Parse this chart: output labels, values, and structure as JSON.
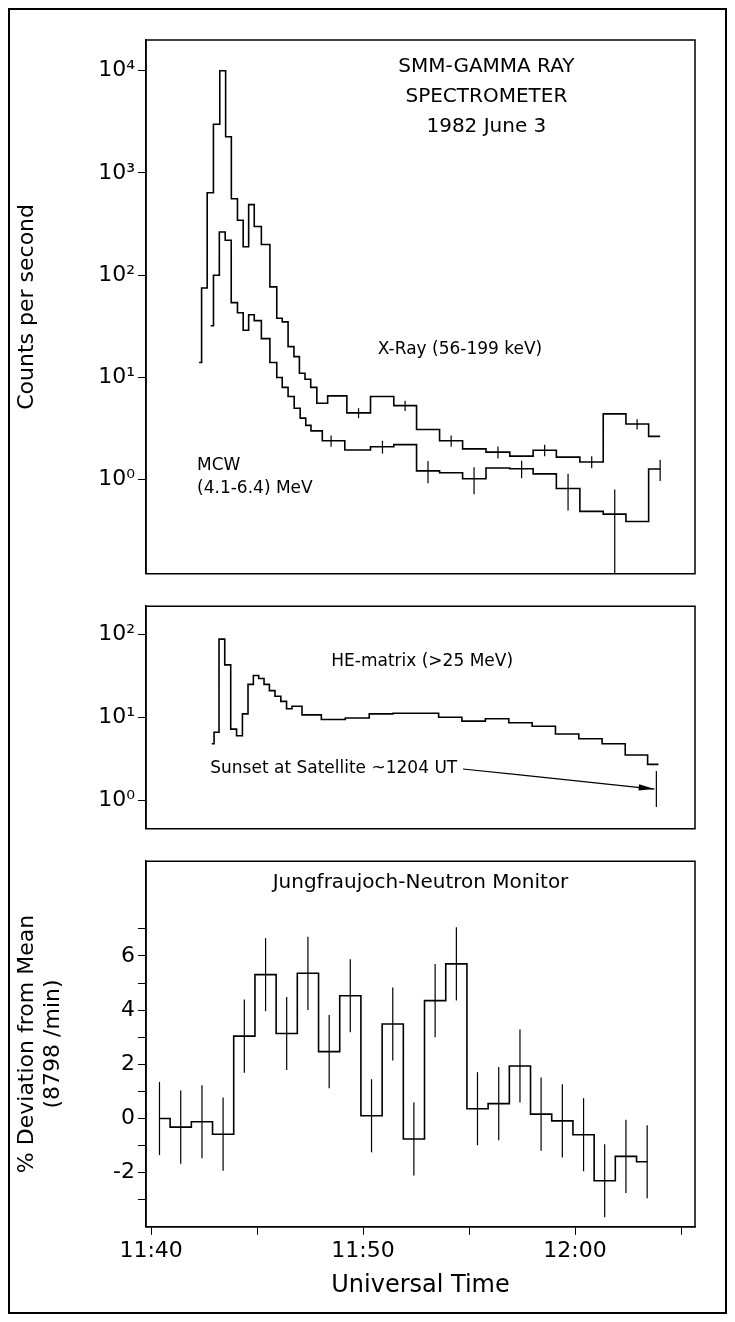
{
  "chart_data": [
    {
      "type": "step",
      "title": "SMM-GAMMA RAY\nSPECTROMETER\n1982 June 3",
      "ylabel": "Counts per second",
      "log": "y",
      "tick_labels": "y",
      "xlim": [
        11.6627,
        12.0943
      ],
      "ylim": [
        0.12,
        20000
      ],
      "yticks": [
        {
          "value": 1,
          "label": "10⁰"
        },
        {
          "value": 10,
          "label": "10¹"
        },
        {
          "value": 100,
          "label": "10²"
        },
        {
          "value": 1000,
          "label": "10³"
        },
        {
          "value": 10000,
          "label": "10⁴"
        }
      ],
      "series": [
        {
          "name": "X-Ray (56-199 keV)",
          "color": "#000000",
          "x": [
            11.7044,
            11.7084,
            11.7132,
            11.7182,
            11.7232,
            11.7274,
            11.7322,
            11.737,
            11.7412,
            11.7456,
            11.75,
            11.7568,
            11.7634,
            11.7676,
            11.772,
            11.7768,
            11.7812,
            11.7854,
            11.79,
            11.7944,
            11.7996,
            11.8114,
            11.8298,
            11.8486,
            11.8664,
            11.8844,
            11.9026,
            11.9206,
            11.9394,
            11.958,
            11.9761,
            11.9945,
            12.0131,
            12.0312,
            12.0488,
            12.0669
          ],
          "values": [
            14,
            75,
            640,
            3000,
            10000,
            2260,
            560,
            345,
            190,
            490,
            300,
            200,
            77,
            38,
            35,
            20,
            16,
            11,
            9.6,
            8,
            5.6,
            6.6,
            4.5,
            6.5,
            5.3,
            3.1,
            2.4,
            2.0,
            1.86,
            1.7,
            1.94,
            1.66,
            1.49,
            4.4,
            3.5,
            2.65
          ],
          "errors": [
            null,
            null,
            null,
            null,
            null,
            null,
            null,
            null,
            null,
            null,
            null,
            null,
            null,
            null,
            null,
            null,
            null,
            null,
            null,
            null,
            null,
            null,
            0.5,
            null,
            0.6,
            null,
            0.3,
            null,
            0.25,
            null,
            0.25,
            null,
            0.2,
            null,
            0.4,
            null
          ]
        },
        {
          "name": "MCW\n(4.1-6.4) MeV",
          "color": "#000000",
          "x": [
            11.7135,
            11.718,
            11.7227,
            11.7272,
            11.7322,
            11.737,
            11.7412,
            11.7456,
            11.75,
            11.7568,
            11.7634,
            11.7676,
            11.772,
            11.7768,
            11.7816,
            11.7862,
            11.7904,
            11.7944,
            11.8082,
            11.8298,
            11.8486,
            11.8664,
            11.8844,
            11.9026,
            11.9206,
            11.9394,
            11.958,
            11.9761,
            11.9945,
            12.0131,
            12.0312,
            12.0488,
            12.0669
          ],
          "values": [
            32,
            100,
            265,
            220,
            54,
            43,
            29,
            41,
            36,
            24,
            14,
            10,
            8,
            6.5,
            5,
            4,
            3.4,
            3.0,
            2.4,
            1.95,
            2.1,
            2.2,
            1.22,
            1.17,
            1.02,
            1.3,
            1.28,
            1.14,
            0.82,
            0.49,
            0.46,
            0.39,
            1.27
          ],
          "errors": [
            null,
            null,
            null,
            null,
            null,
            null,
            null,
            null,
            null,
            null,
            null,
            null,
            null,
            null,
            null,
            null,
            null,
            null,
            0.3,
            null,
            0.3,
            null,
            0.3,
            null,
            0.3,
            null,
            0.25,
            null,
            0.32,
            null,
            0.34,
            null,
            0.3
          ]
        }
      ]
    },
    {
      "type": "step",
      "log": "y",
      "tick_labels": "y",
      "xlim": [
        11.6627,
        12.0943
      ],
      "ylim": [
        0.45,
        220
      ],
      "yticks": [
        {
          "value": 1,
          "label": "10⁰"
        },
        {
          "value": 10,
          "label": "10¹"
        },
        {
          "value": 100,
          "label": "10²"
        }
      ],
      "annotations": [
        "Sunset at Satellite ~1204 UT"
      ],
      "series": [
        {
          "name": "HE-matrix (>25 MeV)",
          "color": "#000000",
          "x": [
            11.7144,
            11.718,
            11.7222,
            11.727,
            11.7316,
            11.7362,
            11.7408,
            11.745,
            11.7492,
            11.7534,
            11.7576,
            11.7618,
            11.7664,
            11.771,
            11.7754,
            11.7796,
            11.7911,
            11.81,
            11.8288,
            11.8476,
            11.866,
            11.8837,
            11.9018,
            11.9203,
            11.9387,
            11.9571,
            11.9754,
            11.9938,
            12.0121,
            12.0304,
            12.0485,
            12.0656
          ],
          "values": [
            4.8,
            6.6,
            88,
            43,
            7.2,
            6.0,
            11,
            25,
            32,
            29.5,
            25,
            21,
            18,
            15.6,
            12.7,
            13.6,
            10.7,
            9.4,
            9.8,
            11,
            11.2,
            11.2,
            10,
            9,
            9.6,
            8.6,
            7.8,
            6.3,
            5.5,
            4.8,
            3.5,
            2.7
          ]
        }
      ]
    },
    {
      "type": "step",
      "title": "Jungfraujoch-Neutron Monitor",
      "xlabel": "Universal Time",
      "ylabel": "% Deviation from Mean\n(8798 /min)",
      "xlim": [
        11.6627,
        12.0943
      ],
      "ylim": [
        -4,
        9.5
      ],
      "xticks": [
        {
          "value": 11.6667,
          "label": "11:40"
        },
        {
          "value": 11.75,
          "label": null
        },
        {
          "value": 11.8333,
          "label": "11:50"
        },
        {
          "value": 11.9167,
          "label": null
        },
        {
          "value": 12,
          "label": "12:00"
        },
        {
          "value": 12.0833,
          "label": null
        }
      ],
      "yticks": [
        {
          "value": -3,
          "label": null
        },
        -2,
        {
          "value": -1,
          "label": null
        },
        0,
        {
          "value": 1,
          "label": null
        },
        2,
        {
          "value": 3,
          "label": null
        },
        4,
        {
          "value": 5,
          "label": null
        },
        6,
        {
          "value": 7,
          "label": null
        }
      ],
      "series": [
        {
          "color": "#000000",
          "x": [
            11.6733,
            11.69,
            11.7067,
            11.7233,
            11.74,
            11.7567,
            11.7733,
            11.79,
            11.8067,
            11.8233,
            11.84,
            11.8567,
            11.8733,
            11.89,
            11.9067,
            11.9233,
            11.94,
            11.9567,
            11.9733,
            11.99,
            12.0067,
            12.0233,
            12.04,
            12.0567
          ],
          "values": [
            0.0,
            -0.32,
            -0.12,
            -0.58,
            3.04,
            5.31,
            3.14,
            5.36,
            2.47,
            4.53,
            0.1,
            3.49,
            -0.76,
            4.35,
            5.71,
            0.36,
            0.55,
            1.94,
            0.16,
            -0.09,
            -0.6,
            -2.3,
            -1.4,
            -1.6
          ],
          "errors": [
            1.35,
            1.35,
            1.35,
            1.35,
            1.35,
            1.35,
            1.35,
            1.35,
            1.35,
            1.35,
            1.35,
            1.35,
            1.35,
            1.35,
            1.35,
            1.35,
            1.35,
            1.35,
            1.35,
            1.35,
            1.35,
            1.35,
            1.35,
            1.35
          ]
        }
      ]
    }
  ]
}
